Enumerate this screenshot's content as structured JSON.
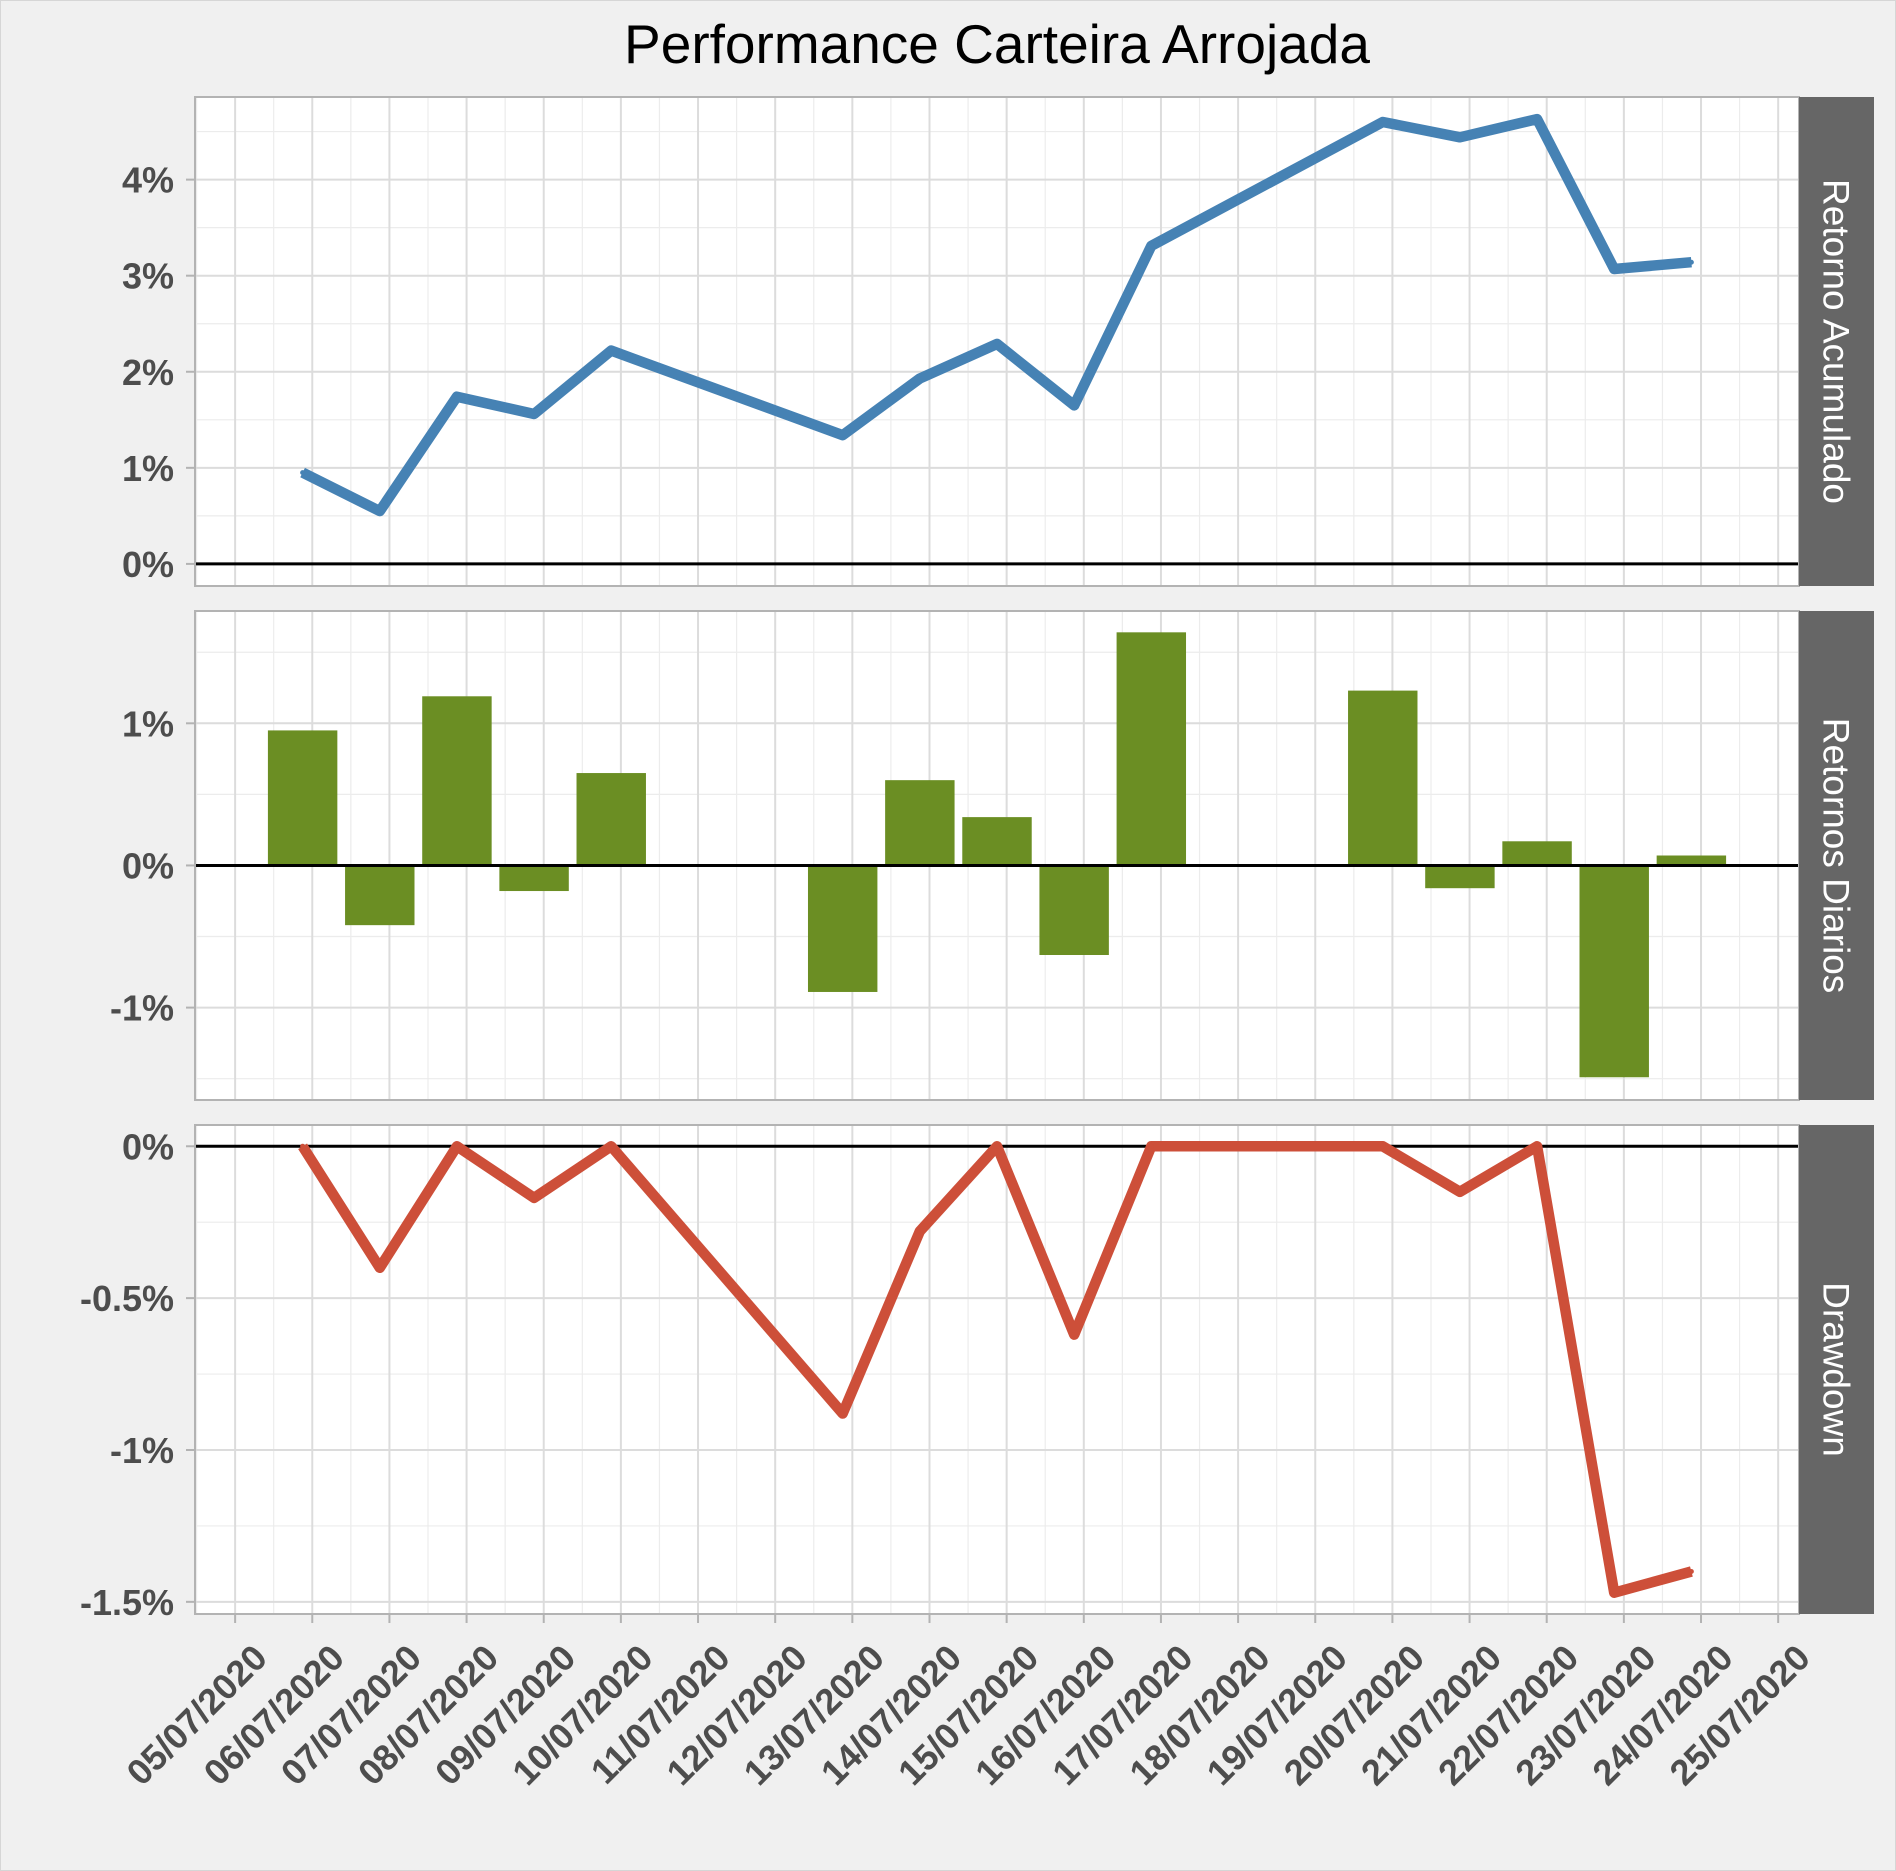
{
  "chart_data": {
    "type": "line",
    "title": "Performance Carteira Arrojada",
    "grid": true,
    "x": [
      "06/07/2020",
      "07/07/2020",
      "08/07/2020",
      "09/07/2020",
      "10/07/2020",
      "13/07/2020",
      "14/07/2020",
      "15/07/2020",
      "16/07/2020",
      "17/07/2020",
      "20/07/2020",
      "21/07/2020",
      "22/07/2020",
      "23/07/2020",
      "24/07/2020"
    ],
    "x_tick_labels": [
      "05/07/2020",
      "06/07/2020",
      "07/07/2020",
      "08/07/2020",
      "09/07/2020",
      "10/07/2020",
      "11/07/2020",
      "12/07/2020",
      "13/07/2020",
      "14/07/2020",
      "15/07/2020",
      "16/07/2020",
      "17/07/2020",
      "18/07/2020",
      "19/07/2020",
      "20/07/2020",
      "21/07/2020",
      "22/07/2020",
      "23/07/2020",
      "24/07/2020",
      "25/07/2020"
    ],
    "panels": [
      {
        "name": "Retorno Acumulado",
        "type": "line",
        "color": "#4682B4",
        "values": [
          0.95,
          0.55,
          1.74,
          1.56,
          2.22,
          1.34,
          1.93,
          2.29,
          1.65,
          3.31,
          4.6,
          4.44,
          4.63,
          3.07,
          3.14
        ],
        "ylim": [
          -0.23,
          4.86
        ],
        "y_ticks": [
          0,
          1,
          2,
          3,
          4
        ],
        "y_tick_labels": [
          "0%",
          "1%",
          "2%",
          "3%",
          "4%"
        ],
        "reference_line": 0
      },
      {
        "name": "Retornos Diarios",
        "type": "bar",
        "color": "#6B8E23",
        "values": [
          0.95,
          -0.42,
          1.19,
          -0.18,
          0.65,
          -0.89,
          0.6,
          0.34,
          -0.63,
          1.64,
          1.23,
          -0.16,
          0.17,
          -1.49,
          0.07
        ],
        "ylim": [
          -1.65,
          1.79
        ],
        "y_ticks": [
          -1,
          0,
          1
        ],
        "y_tick_labels": [
          "-1%",
          "0%",
          "1%"
        ],
        "reference_line": 0
      },
      {
        "name": "Drawdown",
        "type": "line",
        "color": "#CD4F39",
        "values": [
          0,
          -0.4,
          0,
          -0.17,
          0,
          -0.88,
          -0.28,
          0,
          -0.62,
          0,
          0,
          -0.15,
          0,
          -1.47,
          -1.4
        ],
        "ylim": [
          -1.54,
          0.07
        ],
        "y_ticks": [
          -1.5,
          -1,
          -0.5,
          0
        ],
        "y_tick_labels": [
          "-1.5%",
          "-1%",
          "-0.5%",
          "0%"
        ],
        "reference_line": 0
      }
    ]
  }
}
